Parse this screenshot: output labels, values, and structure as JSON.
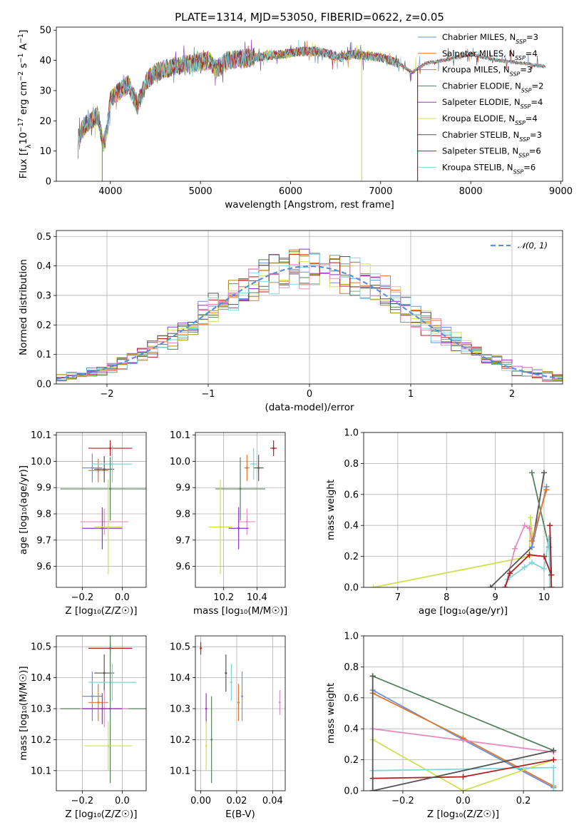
{
  "title": "PLATE=1314, MJD=53050, FIBERID=0622, z=0.05",
  "colors": {
    "c1": "#6a8fe0",
    "c2": "#e0782a",
    "c3": "#a98d17",
    "c4": "#53825e",
    "c5": "#9333c8",
    "c6": "#cfe050",
    "c7": "#555555",
    "c8": "#b01f1f",
    "c9": "#7fd6dc",
    "pink": "#e58bc0",
    "gaussian": "#5b8fd6"
  },
  "legend_models": [
    {
      "name": "Chabrier MILES, N",
      "nssp": 3,
      "color": "c1"
    },
    {
      "name": "Salpeter MILES, N",
      "nssp": 4,
      "color": "c2"
    },
    {
      "name": "Kroupa MILES, N",
      "nssp": 3,
      "color": "c3"
    },
    {
      "name": "Chabrier ELODIE, N",
      "nssp": 2,
      "color": "c4"
    },
    {
      "name": "Salpeter ELODIE, N",
      "nssp": 4,
      "color": "c5"
    },
    {
      "name": "Kroupa ELODIE, N",
      "nssp": 4,
      "color": "c6"
    },
    {
      "name": "Chabrier STELIB, N",
      "nssp": 3,
      "color": "c7"
    },
    {
      "name": "Salpeter STELIB, N",
      "nssp": 6,
      "color": "c8"
    },
    {
      "name": "Kroupa STELIB, N",
      "nssp": 6,
      "color": "c9"
    }
  ],
  "legend_sub": "SSP",
  "legend_gaussian": "𝒩(0, 1)",
  "chart_data": [
    {
      "id": "spectrum",
      "type": "line",
      "xlabel": "wavelength [Angstrom, rest frame]",
      "ylabel": "Flux [f",
      "ylabel_rest": "10",
      "ylabel_exp": "−17",
      "ylabel_units": "erg cm",
      "ylabel_exp2": "−2",
      "ylabel_s": "s",
      "ylabel_exp3": "−1",
      "ylabel_A": "A",
      "ylabel_exp4": "−1",
      "ylabel_end": "]",
      "xlim": [
        3400,
        9020
      ],
      "ylim": [
        0,
        51
      ],
      "xticks": [
        4000,
        5000,
        6000,
        7000,
        8000,
        9000
      ],
      "yticks": [
        0,
        10,
        20,
        30,
        40,
        50
      ],
      "grid": false,
      "continuum": [
        [
          3640,
          14
        ],
        [
          3700,
          18
        ],
        [
          3780,
          20
        ],
        [
          3860,
          22
        ],
        [
          3920,
          12
        ],
        [
          3960,
          16
        ],
        [
          4000,
          27
        ],
        [
          4100,
          30
        ],
        [
          4200,
          32
        ],
        [
          4300,
          25
        ],
        [
          4400,
          33
        ],
        [
          4500,
          36
        ],
        [
          4700,
          38
        ],
        [
          4900,
          39
        ],
        [
          5100,
          40
        ],
        [
          5170,
          37
        ],
        [
          5300,
          40
        ],
        [
          5600,
          41
        ],
        [
          5900,
          42
        ],
        [
          6100,
          43
        ],
        [
          6300,
          43
        ],
        [
          6563,
          41
        ],
        [
          6700,
          42
        ],
        [
          7000,
          41
        ],
        [
          7200,
          39
        ],
        [
          7350,
          36
        ],
        [
          7500,
          39
        ],
        [
          7700,
          40
        ],
        [
          8000,
          42
        ],
        [
          8300,
          40
        ],
        [
          8600,
          39
        ],
        [
          8800,
          38
        ]
      ],
      "dropouts": [
        {
          "x": 3910,
          "color": "c3"
        },
        {
          "x": 6790,
          "color": "c6"
        },
        {
          "x": 7410,
          "color": "c8"
        }
      ]
    },
    {
      "id": "residuals",
      "type": "step",
      "xlabel": "(data-model)/error",
      "ylabel": "Normed distribution",
      "xlim": [
        -2.5,
        2.5
      ],
      "ylim": [
        0,
        0.52
      ],
      "xticks": [
        -2,
        -1,
        0,
        1,
        2
      ],
      "yticks": [
        0.0,
        0.1,
        0.2,
        0.3,
        0.4,
        0.5
      ],
      "grid": true,
      "bin_width": 0.1,
      "gaussian": {
        "mean": 0,
        "sigma": 1
      }
    },
    {
      "id": "age_vs_Z",
      "type": "errorbar",
      "xlabel": "Z [log₁₀(Z/Z☉)]",
      "ylabel": "age  [log₁₀(age/yr)]",
      "xlim": [
        -0.33,
        0.12
      ],
      "ylim": [
        9.52,
        10.11
      ],
      "xticks": [
        -0.2,
        0.0
      ],
      "yticks": [
        9.6,
        9.7,
        9.8,
        9.9,
        10.0,
        10.1
      ],
      "grid": true,
      "points": [
        {
          "x": -0.15,
          "y": 9.975,
          "xerr": 0.05,
          "yerr": 0.055,
          "color": "c1"
        },
        {
          "x": -0.12,
          "y": 9.965,
          "xerr": 0.05,
          "yerr": 0.045,
          "color": "c2"
        },
        {
          "x": -0.06,
          "y": 10.05,
          "xerr": 0.11,
          "yerr": 0.03,
          "color": "c8"
        },
        {
          "x": -0.09,
          "y": 9.97,
          "xerr": 0.05,
          "yerr": 0.05,
          "color": "c7"
        },
        {
          "x": -0.05,
          "y": 9.99,
          "xerr": 0.1,
          "yerr": 0.07,
          "color": "c9"
        },
        {
          "x": -0.06,
          "y": 9.895,
          "xerr": 0.25,
          "yerr": 0.12,
          "color": "c4"
        },
        {
          "x": -0.09,
          "y": 9.77,
          "xerr": 0.12,
          "yerr": 0.05,
          "color": "pink"
        },
        {
          "x": -0.1,
          "y": 9.745,
          "xerr": 0.1,
          "yerr": 0.08,
          "color": "c5"
        },
        {
          "x": -0.07,
          "y": 9.75,
          "xerr": 0.07,
          "yerr": 0.18,
          "color": "c6"
        }
      ]
    },
    {
      "id": "age_vs_mass",
      "type": "errorbar",
      "xlabel": "mass [log₁₀(M/M☉)]",
      "ylabel": "",
      "xlim": [
        10.03,
        10.57
      ],
      "ylim": [
        9.52,
        10.11
      ],
      "xticks": [
        10.2,
        10.4
      ],
      "yticks": [
        9.6,
        9.7,
        9.8,
        9.9,
        10.0,
        10.1
      ],
      "grid": true,
      "points": [
        {
          "x": 10.34,
          "y": 9.975,
          "xerr": 0.015,
          "yerr": 0.05,
          "color": "c2"
        },
        {
          "x": 10.5,
          "y": 10.05,
          "xerr": 0.02,
          "yerr": 0.03,
          "color": "c8"
        },
        {
          "x": 10.41,
          "y": 9.975,
          "xerr": 0.03,
          "yerr": 0.05,
          "color": "c7"
        },
        {
          "x": 10.38,
          "y": 9.99,
          "xerr": 0.02,
          "yerr": 0.06,
          "color": "c9"
        },
        {
          "x": 10.3,
          "y": 9.895,
          "xerr": 0.15,
          "yerr": 0.12,
          "color": "c4"
        },
        {
          "x": 10.34,
          "y": 9.77,
          "xerr": 0.05,
          "yerr": 0.05,
          "color": "pink"
        },
        {
          "x": 10.29,
          "y": 9.745,
          "xerr": 0.06,
          "yerr": 0.08,
          "color": "c5"
        },
        {
          "x": 10.18,
          "y": 9.75,
          "xerr": 0.07,
          "yerr": 0.18,
          "color": "c6"
        }
      ]
    },
    {
      "id": "mw_vs_age",
      "type": "line",
      "xlabel": "age  [log₁₀(age/yr)]",
      "ylabel": "mass weight",
      "xlim": [
        6.3,
        10.38
      ],
      "ylim": [
        0,
        1
      ],
      "xticks": [
        7,
        8,
        9,
        10
      ],
      "yticks": [
        0.0,
        0.2,
        0.4,
        0.6,
        0.8,
        1.0
      ],
      "grid": true,
      "series": [
        {
          "color": "c6",
          "x": [
            6.5,
            9.7,
            9.72,
            9.75,
            9.78
          ],
          "y": [
            0.0,
            0.2,
            0.45,
            0.35,
            0.33
          ]
        },
        {
          "color": "pink",
          "x": [
            9.2,
            9.4,
            9.6,
            9.7,
            9.75
          ],
          "y": [
            0.0,
            0.25,
            0.4,
            0.38,
            0.3
          ]
        },
        {
          "color": "c7",
          "x": [
            8.9,
            9.75,
            10.0
          ],
          "y": [
            0.0,
            0.26,
            0.74
          ]
        },
        {
          "color": "c4",
          "x": [
            9.75,
            10.1
          ],
          "y": [
            0.74,
            0.26
          ]
        },
        {
          "color": "c1",
          "x": [
            9.75,
            10.05
          ],
          "y": [
            0.26,
            0.65
          ]
        },
        {
          "color": "c2",
          "x": [
            9.75,
            10.05
          ],
          "y": [
            0.3,
            0.63
          ]
        },
        {
          "color": "c9",
          "x": [
            9.25,
            9.6,
            9.75,
            10.0,
            10.1,
            10.12
          ],
          "y": [
            0.05,
            0.13,
            0.16,
            0.12,
            0.32,
            0.0
          ]
        },
        {
          "color": "c8",
          "x": [
            9.2,
            9.3,
            9.7,
            10.0,
            10.15,
            10.12,
            10.15
          ],
          "y": [
            0.0,
            0.09,
            0.21,
            0.2,
            0.08,
            0.4,
            0.0
          ]
        }
      ]
    },
    {
      "id": "mass_vs_Z",
      "type": "errorbar",
      "xlabel": "Z [log₁₀(Z/Z☉)]",
      "ylabel": "mass [log₁₀(M/M☉)]",
      "xlim": [
        -0.33,
        0.12
      ],
      "ylim": [
        10.035,
        10.535
      ],
      "xticks": [
        -0.2,
        0.0
      ],
      "yticks": [
        10.1,
        10.2,
        10.3,
        10.4,
        10.5
      ],
      "grid": true,
      "points": [
        {
          "x": -0.06,
          "y": 10.495,
          "xerr": 0.11,
          "yerr": 0.02,
          "color": "c8"
        },
        {
          "x": -0.15,
          "y": 10.34,
          "xerr": 0.05,
          "yerr": 0.08,
          "color": "c1"
        },
        {
          "x": -0.12,
          "y": 10.32,
          "xerr": 0.05,
          "yerr": 0.06,
          "color": "c2"
        },
        {
          "x": -0.09,
          "y": 10.415,
          "xerr": 0.05,
          "yerr": 0.06,
          "color": "c7"
        },
        {
          "x": -0.05,
          "y": 10.385,
          "xerr": 0.12,
          "yerr": 0.06,
          "color": "c9"
        },
        {
          "x": -0.06,
          "y": 10.3,
          "xerr": 0.25,
          "yerr": 0.24,
          "color": "c4"
        },
        {
          "x": -0.09,
          "y": 10.3,
          "xerr": 0.12,
          "yerr": 0.06,
          "color": "pink"
        },
        {
          "x": -0.1,
          "y": 10.3,
          "xerr": 0.1,
          "yerr": 0.05,
          "color": "c5"
        },
        {
          "x": -0.07,
          "y": 10.18,
          "xerr": 0.12,
          "yerr": 0.08,
          "color": "c6"
        }
      ]
    },
    {
      "id": "mass_vs_ebv",
      "type": "errorbar",
      "xlabel": "E(B-V)",
      "ylabel": "",
      "xlim": [
        -0.003,
        0.047
      ],
      "ylim": [
        10.035,
        10.535
      ],
      "xticks": [
        0.0,
        0.02,
        0.04
      ],
      "yticks": [
        10.1,
        10.2,
        10.3,
        10.4,
        10.5
      ],
      "grid": true,
      "points": [
        {
          "x": 0.0,
          "y": 10.495,
          "xerr": 0.0,
          "yerr": 0.02,
          "color": "c8"
        },
        {
          "x": 0.023,
          "y": 10.34,
          "xerr": 0.0,
          "yerr": 0.08,
          "color": "c1"
        },
        {
          "x": 0.021,
          "y": 10.32,
          "xerr": 0.0,
          "yerr": 0.06,
          "color": "c2"
        },
        {
          "x": 0.014,
          "y": 10.415,
          "xerr": 0.0,
          "yerr": 0.06,
          "color": "c7"
        },
        {
          "x": 0.017,
          "y": 10.385,
          "xerr": 0.0,
          "yerr": 0.06,
          "color": "c9"
        },
        {
          "x": 0.006,
          "y": 10.2,
          "xerr": 0.0,
          "yerr": 0.14,
          "color": "c4"
        },
        {
          "x": 0.044,
          "y": 10.32,
          "xerr": 0.0,
          "yerr": 0.04,
          "color": "pink"
        },
        {
          "x": 0.003,
          "y": 10.3,
          "xerr": 0.0,
          "yerr": 0.05,
          "color": "c5"
        },
        {
          "x": 0.003,
          "y": 10.18,
          "xerr": 0.0,
          "yerr": 0.08,
          "color": "c6"
        }
      ]
    },
    {
      "id": "mw_vs_Z",
      "type": "line",
      "xlabel": "Z [log₁₀(Z/Z☉)]",
      "ylabel": "mass weight",
      "xlim": [
        -0.33,
        0.33
      ],
      "ylim": [
        0,
        1
      ],
      "xticks": [
        -0.2,
        0.0,
        0.2
      ],
      "yticks": [
        0.0,
        0.2,
        0.4,
        0.6,
        0.8,
        1.0
      ],
      "grid": true,
      "series": [
        {
          "color": "c4",
          "x": [
            -0.3,
            0.3
          ],
          "y": [
            0.74,
            0.26
          ]
        },
        {
          "color": "c1",
          "x": [
            -0.3,
            0.0,
            0.3
          ],
          "y": [
            0.65,
            0.33,
            0.02
          ]
        },
        {
          "color": "c2",
          "x": [
            -0.3,
            0.0,
            0.3
          ],
          "y": [
            0.63,
            0.34,
            0.03
          ]
        },
        {
          "color": "pink",
          "x": [
            -0.3,
            0.3
          ],
          "y": [
            0.4,
            0.25
          ]
        },
        {
          "color": "c6",
          "x": [
            -0.3,
            0.0,
            0.3
          ],
          "y": [
            0.33,
            0.0,
            0.2
          ]
        },
        {
          "color": "c9",
          "x": [
            -0.3,
            0.3,
            0.3
          ],
          "y": [
            0.13,
            0.15,
            0.0
          ]
        },
        {
          "color": "c8",
          "x": [
            -0.3,
            0.0,
            0.3
          ],
          "y": [
            0.08,
            0.09,
            0.2
          ]
        },
        {
          "color": "c7",
          "x": [
            -0.3,
            -0.3,
            0.3
          ],
          "y": [
            0.74,
            0.0,
            0.26
          ]
        }
      ]
    }
  ]
}
